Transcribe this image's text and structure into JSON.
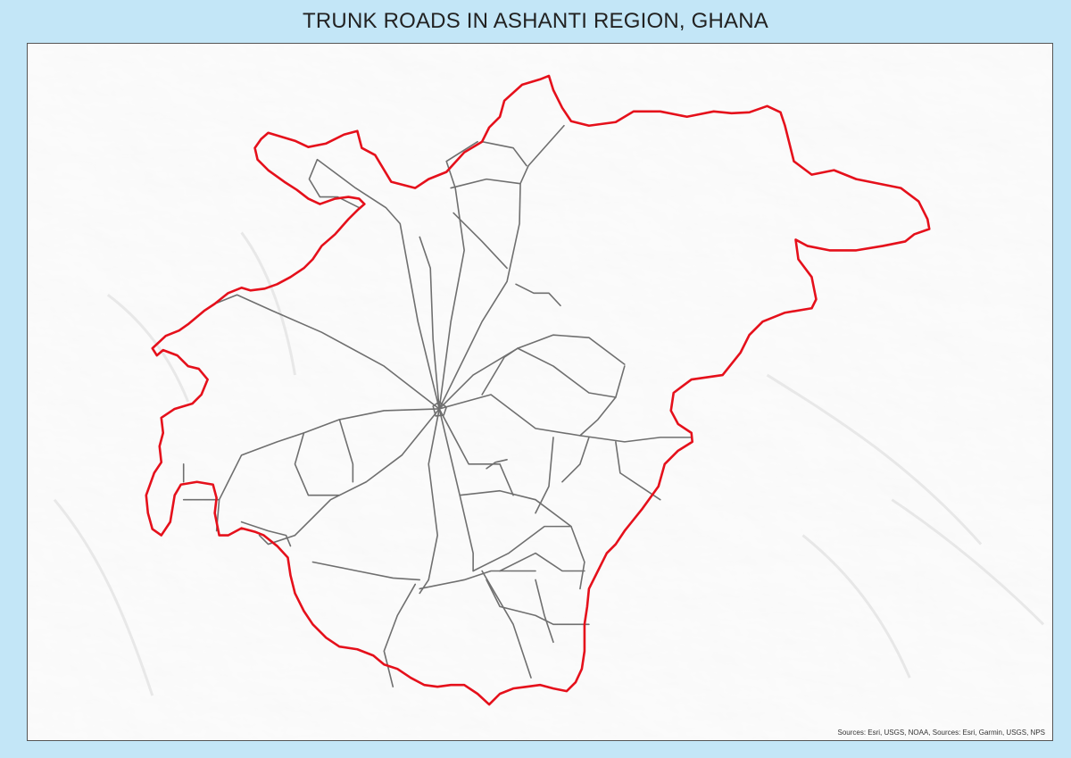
{
  "title": "TRUNK ROADS IN ASHANTI REGION, GHANA",
  "map": {
    "credits": "Sources: Esri, USGS, NOAA, Sources: Esri, Garmin, USGS, NPS",
    "colors": {
      "boundary": "#e5101b",
      "roads": "#6f6f6f",
      "background": "#c3e6f7",
      "relief": "#f6f6f6"
    }
  }
}
